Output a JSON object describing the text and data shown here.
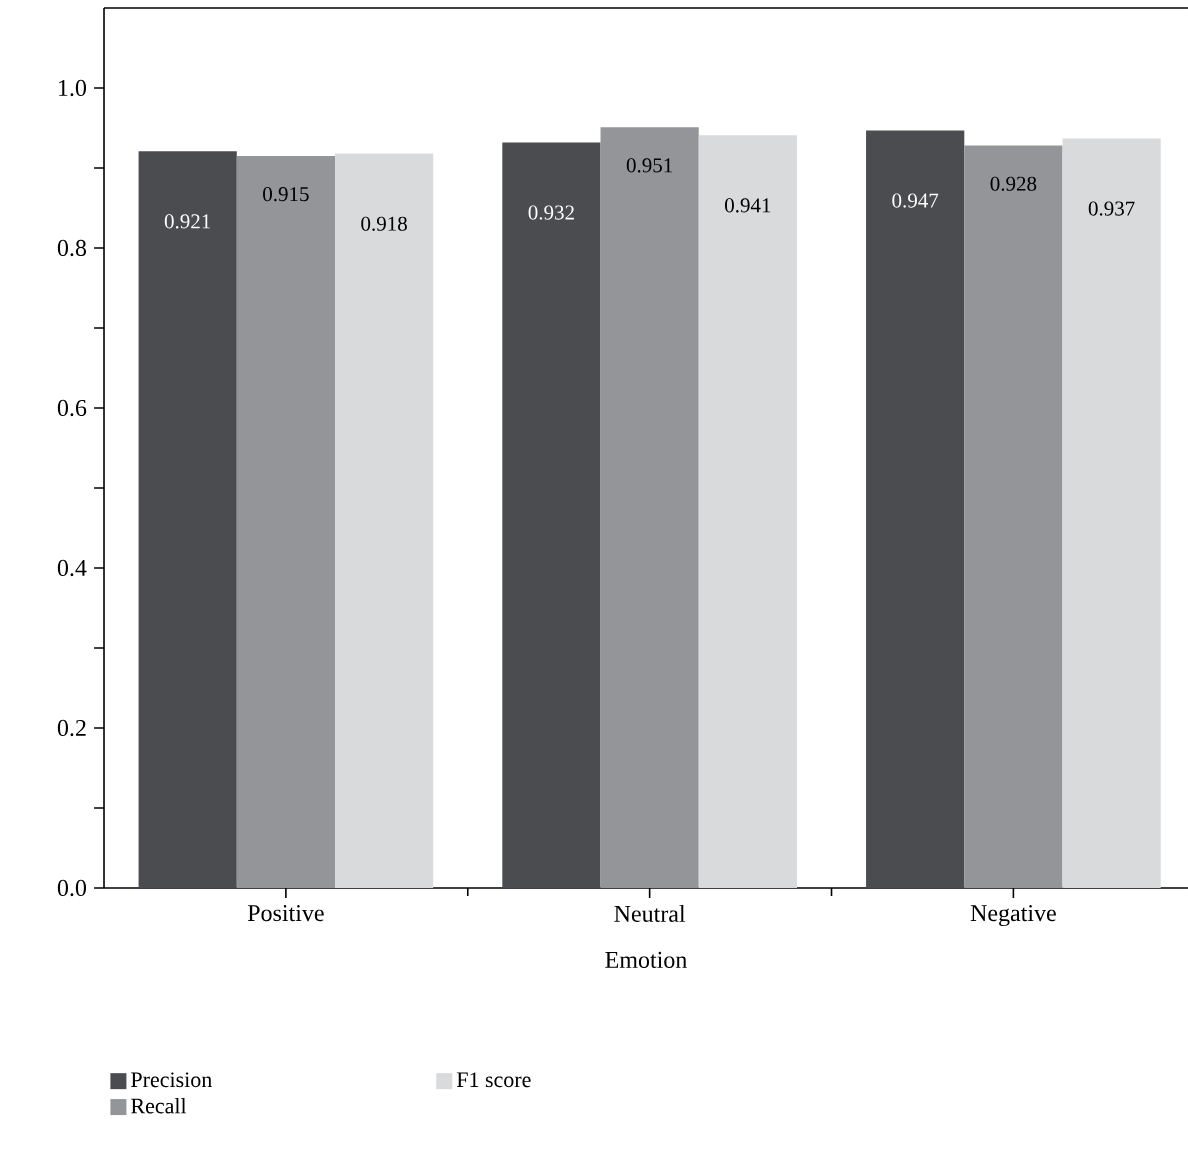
{
  "chart_data": {
    "type": "bar",
    "xlabel": "Emotion",
    "categories": [
      "Positive",
      "Neutral",
      "Negative"
    ],
    "series": [
      {
        "name": "Precision",
        "color": "#4b4c4f",
        "values": [
          0.921,
          0.932,
          0.947
        ]
      },
      {
        "name": "Recall",
        "color": "#949599",
        "values": [
          0.915,
          0.951,
          0.928
        ]
      },
      {
        "name": "F1 score",
        "color": "#d9dadc",
        "values": [
          0.918,
          0.941,
          0.937
        ]
      }
    ],
    "ylim": [
      0,
      1.1
    ],
    "yticks": [
      {
        "value": 0,
        "label": "0.0"
      },
      {
        "value": 0.1,
        "label": null
      },
      0.2,
      {
        "value": 0.3,
        "label": null
      },
      0.4,
      {
        "value": 0.5,
        "label": null
      },
      0.6,
      {
        "value": 0.7,
        "label": null
      },
      0.8,
      {
        "value": 0.9,
        "label": null
      },
      {
        "value": 1,
        "label": "1.0"
      }
    ],
    "data_labels": true,
    "legend": "bottom",
    "grid": false
  }
}
